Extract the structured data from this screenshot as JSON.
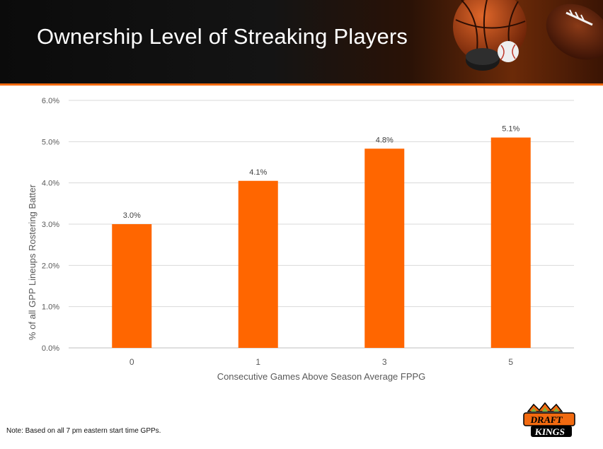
{
  "header": {
    "title": "Ownership Level of Streaking Players"
  },
  "chart_data": {
    "type": "bar",
    "title": "",
    "xlabel": "Consecutive Games Above Season Average FPPG",
    "ylabel": "% of all GPP Lineups Rostering Batter",
    "categories": [
      "0",
      "1",
      "3",
      "5"
    ],
    "values": [
      3.0,
      4.05,
      4.83,
      5.1
    ],
    "data_labels": [
      "3.0%",
      "4.1%",
      "4.8%",
      "5.1%"
    ],
    "ylim": [
      0,
      6
    ],
    "yticks": [
      0,
      1,
      2,
      3,
      4,
      5,
      6
    ],
    "ytick_labels": [
      "0.0%",
      "1.0%",
      "2.0%",
      "3.0%",
      "4.0%",
      "5.0%",
      "6.0%"
    ],
    "grid": true,
    "legend": "none",
    "bar_color": "#ff6600"
  },
  "footer": {
    "note": "Note: Based on all 7 pm eastern start time GPPs.",
    "logo_text": "DRAFT KINGS"
  },
  "colors": {
    "accent": "#f26a10",
    "header_bg": "#0b0b0b",
    "grid": "#d9d9d9",
    "axis_text": "#595959"
  }
}
